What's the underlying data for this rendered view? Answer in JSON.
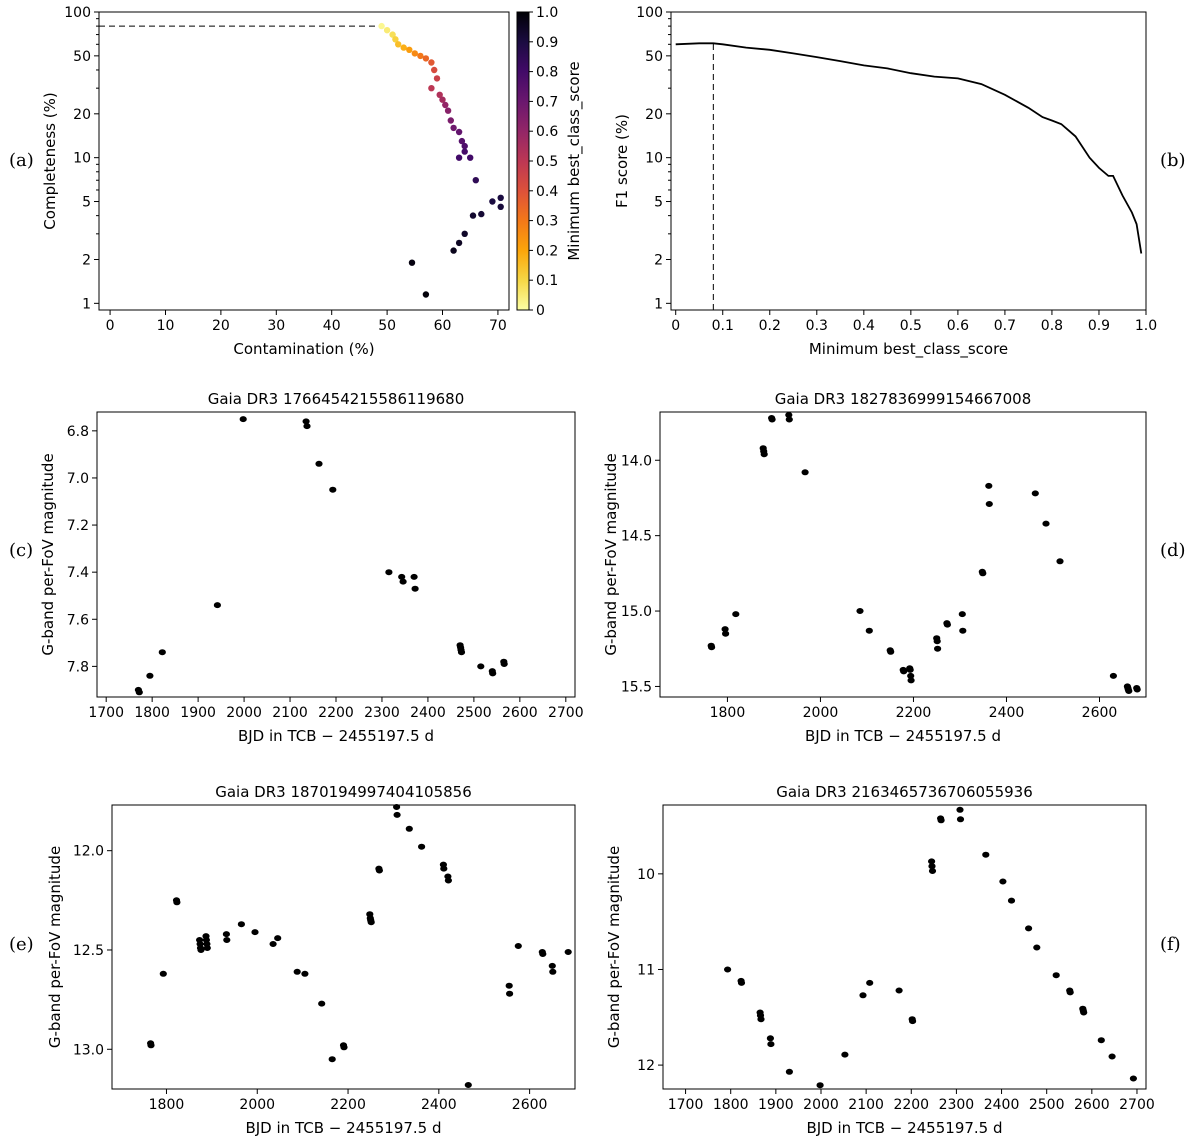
{
  "panel_tags": [
    "(a)",
    "(b)",
    "(c)",
    "(d)",
    "(e)",
    "(f)"
  ],
  "chart_data": [
    {
      "type": "scatter",
      "id": "a",
      "title": "",
      "xlabel": "Contamination (%)",
      "ylabel": "Completeness (%)",
      "xlim": [
        -2,
        72
      ],
      "ylim": [
        0.9,
        100
      ],
      "yscale": "log",
      "xticks": [
        0,
        10,
        20,
        30,
        40,
        50,
        60,
        70
      ],
      "yticks": [
        1,
        2,
        5,
        10,
        20,
        50,
        100
      ],
      "colorbar": {
        "label": "Minimum best_class_score",
        "ticks": [
          "0",
          "0.1",
          "0.2",
          "0.3",
          "0.4",
          "0.5",
          "0.6",
          "0.7",
          "0.8",
          "0.9",
          "1.0"
        ],
        "range": [
          0,
          1
        ]
      },
      "reference_line": {
        "from": [
          -2,
          80
        ],
        "to": [
          49,
          80
        ]
      },
      "x": [
        49,
        50,
        51,
        51.5,
        52,
        53,
        54,
        55,
        56,
        57,
        58,
        58.5,
        59,
        58,
        59.5,
        60,
        60.5,
        61,
        61.5,
        62,
        63,
        63.5,
        64,
        65,
        63,
        64,
        66,
        69,
        70.5,
        70.5,
        67,
        65.5,
        64,
        63,
        62,
        54.5,
        57
      ],
      "y": [
        80,
        75,
        70,
        65,
        60,
        57,
        55,
        52,
        50,
        48,
        45,
        40,
        35,
        30,
        27,
        25,
        23,
        21,
        18,
        16,
        15,
        13,
        12,
        10,
        10,
        11,
        7,
        5,
        5.3,
        4.6,
        4.1,
        4,
        3,
        2.6,
        2.3,
        1.9,
        1.15
      ],
      "scores": [
        0.02,
        0.05,
        0.08,
        0.11,
        0.15,
        0.18,
        0.22,
        0.26,
        0.3,
        0.34,
        0.38,
        0.42,
        0.46,
        0.5,
        0.53,
        0.56,
        0.6,
        0.63,
        0.66,
        0.69,
        0.72,
        0.75,
        0.77,
        0.8,
        0.8,
        0.79,
        0.85,
        0.9,
        0.9,
        0.91,
        0.92,
        0.93,
        0.94,
        0.95,
        0.96,
        0.98,
        0.99
      ]
    },
    {
      "type": "line",
      "id": "b",
      "title": "",
      "xlabel": "Minimum best_class_score",
      "ylabel": "F1 score (%)",
      "xlim": [
        -0.01,
        1.0
      ],
      "ylim": [
        0.9,
        100
      ],
      "yscale": "log",
      "xticks": [
        0,
        0.1,
        0.2,
        0.3,
        0.4,
        0.5,
        0.6,
        0.7,
        0.8,
        0.9,
        1.0
      ],
      "xtick_labels": [
        "0",
        "0.1",
        "0.2",
        "0.3",
        "0.4",
        "0.5",
        "0.6",
        "0.7",
        "0.8",
        "0.9",
        "1.0"
      ],
      "yticks": [
        1,
        2,
        5,
        10,
        20,
        50,
        100
      ],
      "reference_line": {
        "x": 0.08,
        "from_y": 0.9,
        "to_y": 61
      },
      "x": [
        0,
        0.05,
        0.08,
        0.1,
        0.15,
        0.2,
        0.25,
        0.3,
        0.35,
        0.4,
        0.45,
        0.5,
        0.55,
        0.6,
        0.65,
        0.7,
        0.75,
        0.78,
        0.8,
        0.82,
        0.85,
        0.88,
        0.9,
        0.92,
        0.93,
        0.95,
        0.97,
        0.98,
        0.99
      ],
      "y": [
        60,
        61,
        61,
        60,
        57,
        55,
        52,
        49,
        46,
        43,
        41,
        38,
        36,
        35,
        32,
        27,
        22,
        19,
        18,
        17,
        14,
        10,
        8.5,
        7.5,
        7.5,
        5.5,
        4.2,
        3.5,
        2.2
      ]
    },
    {
      "type": "scatter",
      "id": "c",
      "title": "Gaia DR3 1766454215586119680",
      "xlabel": "BJD in TCB − 2455197.5 d",
      "ylabel": "G-band per-FoV magnitude",
      "xlim": [
        1680,
        2720
      ],
      "ylim": [
        6.72,
        7.93
      ],
      "yinvert": true,
      "xticks": [
        1700,
        1800,
        1900,
        2000,
        2100,
        2200,
        2300,
        2400,
        2500,
        2600,
        2700
      ],
      "yticks": [
        6.8,
        7.0,
        7.2,
        7.4,
        7.6,
        7.8
      ],
      "ytick_labels": [
        "6.8",
        "7.0",
        "7.2",
        "7.4",
        "7.6",
        "7.8"
      ],
      "x": [
        1770,
        1772,
        1795,
        1822,
        1942,
        1998,
        2135,
        2137,
        2163,
        2193,
        2315,
        2343,
        2346,
        2370,
        2372,
        2470,
        2471,
        2472,
        2473,
        2515,
        2540,
        2541,
        2565,
        2566
      ],
      "y": [
        7.9,
        7.91,
        7.84,
        7.74,
        7.54,
        6.75,
        6.76,
        6.78,
        6.94,
        7.05,
        7.4,
        7.42,
        7.44,
        7.42,
        7.47,
        7.71,
        7.72,
        7.73,
        7.74,
        7.8,
        7.82,
        7.83,
        7.78,
        7.79
      ]
    },
    {
      "type": "scatter",
      "id": "d",
      "title": "Gaia DR3 1827836999154667008",
      "xlabel": "BJD in TCB − 2455197.5 d",
      "ylabel": "G-band per-FoV magnitude",
      "xlim": [
        1655,
        2700
      ],
      "ylim": [
        13.68,
        15.57
      ],
      "yinvert": true,
      "xticks": [
        1800,
        2000,
        2200,
        2400,
        2600
      ],
      "yticks": [
        14.0,
        14.5,
        15.0,
        15.5
      ],
      "ytick_labels": [
        "14.0",
        "14.5",
        "15.0",
        "15.5"
      ],
      "x": [
        1765,
        1766,
        1795,
        1796,
        1818,
        1877,
        1878,
        1879,
        1895,
        1896,
        1932,
        1933,
        1967,
        2085,
        2105,
        2150,
        2151,
        2178,
        2179,
        2192,
        2193,
        2194,
        2195,
        2250,
        2251,
        2252,
        2272,
        2273,
        2305,
        2306,
        2348,
        2349,
        2362,
        2363,
        2462,
        2485,
        2515,
        2630,
        2660,
        2661,
        2662,
        2663,
        2680,
        2681
      ],
      "y": [
        15.23,
        15.24,
        15.12,
        15.15,
        15.02,
        13.92,
        13.94,
        13.96,
        13.72,
        13.73,
        13.7,
        13.73,
        14.08,
        15.0,
        15.13,
        15.26,
        15.27,
        15.39,
        15.4,
        15.38,
        15.39,
        15.43,
        15.46,
        15.18,
        15.2,
        15.25,
        15.08,
        15.09,
        15.02,
        15.13,
        14.74,
        14.75,
        14.17,
        14.29,
        14.22,
        14.42,
        14.67,
        15.43,
        15.5,
        15.51,
        15.52,
        15.53,
        15.51,
        15.52
      ]
    },
    {
      "type": "scatter",
      "id": "e",
      "title": "Gaia DR3 1870194997404105856",
      "xlabel": "BJD in TCB − 2455197.5 d",
      "ylabel": "G-band per-FoV magnitude",
      "xlim": [
        1680,
        2700
      ],
      "ylim": [
        11.77,
        13.2
      ],
      "yinvert": true,
      "xticks": [
        1800,
        2000,
        2200,
        2400,
        2600
      ],
      "yticks": [
        12.0,
        12.5,
        13.0
      ],
      "ytick_labels": [
        "12.0",
        "12.5",
        "13.0"
      ],
      "x": [
        1765,
        1766,
        1793,
        1822,
        1823,
        1873,
        1874,
        1875,
        1876,
        1887,
        1888,
        1889,
        1890,
        1932,
        1933,
        1965,
        1995,
        2035,
        2045,
        2088,
        2105,
        2142,
        2165,
        2190,
        2191,
        2248,
        2249,
        2250,
        2251,
        2268,
        2269,
        2307,
        2308,
        2335,
        2362,
        2410,
        2411,
        2420,
        2421,
        2465,
        2555,
        2556,
        2575,
        2628,
        2629,
        2650,
        2651,
        2685
      ],
      "y": [
        12.97,
        12.98,
        12.62,
        12.25,
        12.26,
        12.45,
        12.47,
        12.49,
        12.5,
        12.43,
        12.45,
        12.47,
        12.49,
        12.42,
        12.45,
        12.37,
        12.41,
        12.47,
        12.44,
        12.61,
        12.62,
        12.77,
        13.05,
        12.98,
        12.99,
        12.32,
        12.34,
        12.35,
        12.36,
        12.09,
        12.1,
        11.78,
        11.82,
        11.89,
        11.98,
        12.07,
        12.09,
        12.13,
        12.15,
        13.18,
        12.68,
        12.72,
        12.48,
        12.51,
        12.52,
        12.58,
        12.61,
        12.51
      ]
    },
    {
      "type": "scatter",
      "id": "f",
      "title": "Gaia DR3 2163465736706055936",
      "xlabel": "BJD in TCB − 2455197.5 d",
      "ylabel": "G-band per-FoV magnitude",
      "xlim": [
        1650,
        2720
      ],
      "ylim": [
        9.28,
        12.25
      ],
      "yinvert": true,
      "xticks": [
        1700,
        1800,
        1900,
        2000,
        2100,
        2200,
        2300,
        2400,
        2500,
        2600,
        2700
      ],
      "yticks": [
        10,
        11,
        12
      ],
      "ytick_labels": [
        "10",
        "11",
        "12"
      ],
      "x": [
        1793,
        1823,
        1824,
        1865,
        1866,
        1867,
        1888,
        1889,
        1930,
        1998,
        2053,
        2093,
        2108,
        2173,
        2202,
        2203,
        2245,
        2246,
        2247,
        2265,
        2266,
        2308,
        2309,
        2365,
        2403,
        2422,
        2460,
        2478,
        2521,
        2551,
        2552,
        2580,
        2581,
        2582,
        2621,
        2645,
        2692
      ],
      "y": [
        11.0,
        11.12,
        11.14,
        11.45,
        11.48,
        11.52,
        11.72,
        11.78,
        12.07,
        12.21,
        11.89,
        11.27,
        11.14,
        11.22,
        11.52,
        11.54,
        9.87,
        9.92,
        9.97,
        9.42,
        9.44,
        9.33,
        9.43,
        9.8,
        10.08,
        10.28,
        10.57,
        10.77,
        11.06,
        11.22,
        11.24,
        11.41,
        11.43,
        11.45,
        11.74,
        11.91,
        12.14
      ]
    }
  ]
}
